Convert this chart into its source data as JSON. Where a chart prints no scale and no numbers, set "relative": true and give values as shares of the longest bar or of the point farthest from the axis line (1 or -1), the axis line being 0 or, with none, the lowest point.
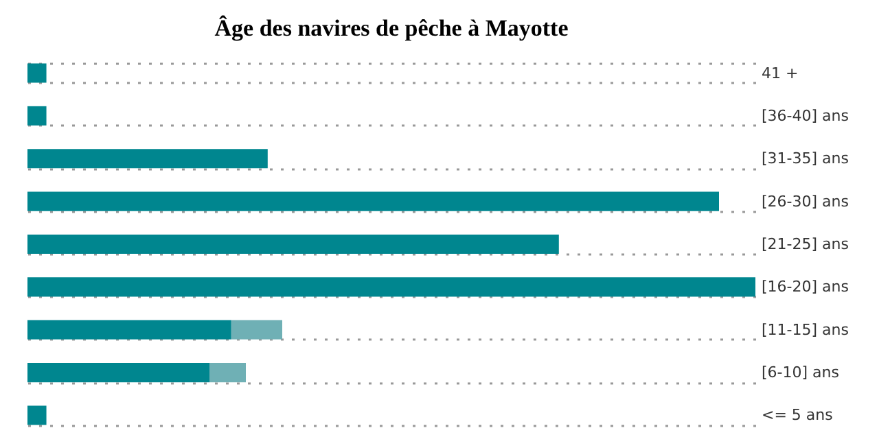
{
  "chart_data": {
    "type": "bar",
    "title": "Âge des navires de pêche à Mayotte",
    "orientation": "horizontal",
    "stacked": true,
    "relative": true,
    "grid": "y",
    "legend": false,
    "categories": [
      "41 +",
      "[36-40] ans",
      "[31-35] ans",
      "[26-30] ans",
      "[21-25] ans",
      "[16-20] ans",
      "[11-15] ans",
      "[6-10] ans",
      "<= 5 ans"
    ],
    "series": [
      {
        "color": "#00868f",
        "values": [
          0.026,
          0.026,
          0.33,
          0.95,
          0.73,
          1,
          0.28,
          0.25,
          0.026
        ]
      },
      {
        "color": "#6fb0b5",
        "values": [
          null,
          null,
          null,
          null,
          null,
          null,
          0.07,
          0.05,
          null
        ]
      }
    ]
  }
}
